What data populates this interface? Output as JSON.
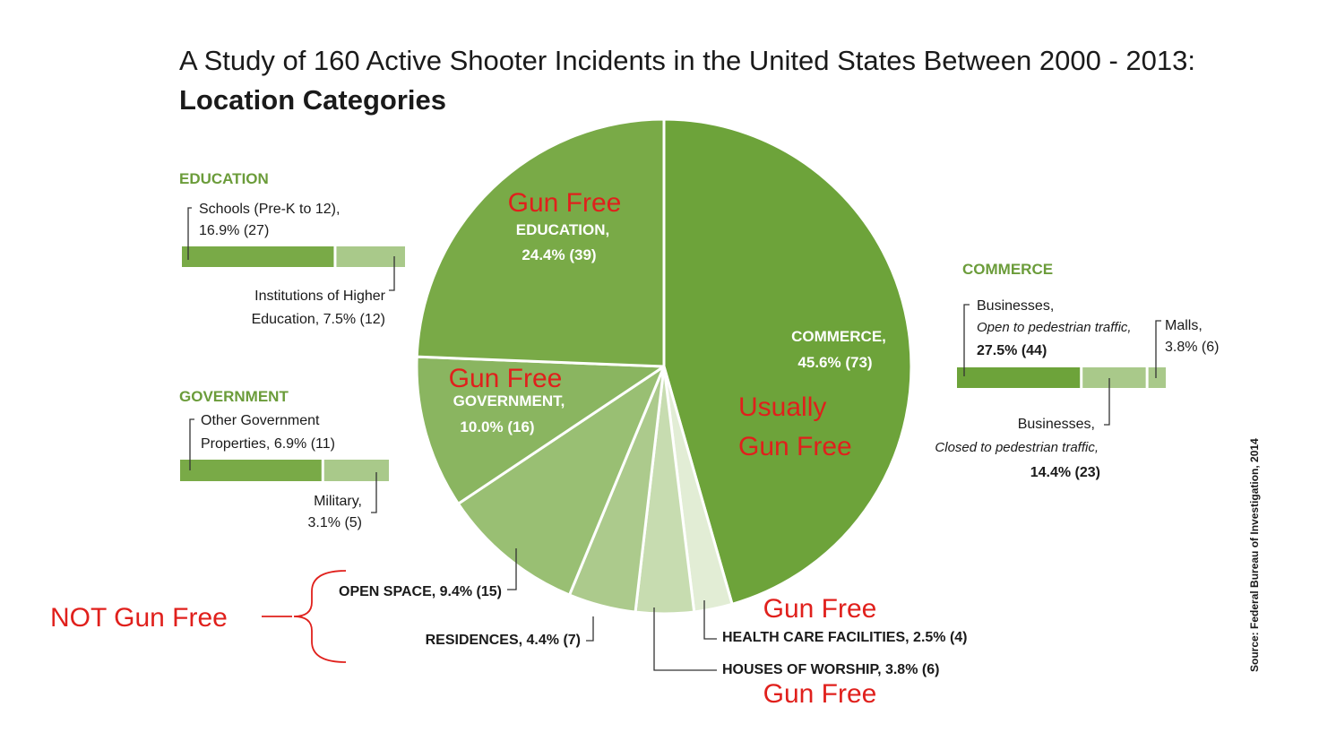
{
  "title": "A Study of 160 Active Shooter Incidents in the United States Between 2000 - 2013:",
  "subtitle": "Location Categories",
  "colors": {
    "commerce": "#6da33a",
    "education": "#79aa47",
    "government": "#8ab560",
    "open_space": "#99bf73",
    "residences": "#acca8c",
    "worship": "#c7dcb0",
    "health": "#e2edd5",
    "bar_light": "#a9c98a",
    "header_green": "#6b9c3a",
    "annotation_red": "#e0201c"
  },
  "chart_data": [
    {
      "type": "pie",
      "title": "Location Categories",
      "slices": [
        {
          "key": "commerce",
          "name": "COMMERCE",
          "percent": 45.6,
          "count": 73,
          "label": "COMMERCE,",
          "value_label": "45.6% (73)"
        },
        {
          "key": "health",
          "name": "HEALTH CARE FACILITIES",
          "percent": 2.5,
          "count": 4,
          "label": "HEALTH CARE FACILITIES, 2.5% (4)"
        },
        {
          "key": "worship",
          "name": "HOUSES OF WORSHIP",
          "percent": 3.8,
          "count": 6,
          "label": "HOUSES OF WORSHIP, 3.8%  (6)"
        },
        {
          "key": "residences",
          "name": "RESIDENCES",
          "percent": 4.4,
          "count": 7,
          "label": "RESIDENCES, 4.4% (7)"
        },
        {
          "key": "open_space",
          "name": "OPEN SPACE",
          "percent": 9.4,
          "count": 15,
          "label": "OPEN SPACE, 9.4% (15)"
        },
        {
          "key": "government",
          "name": "GOVERNMENT",
          "percent": 10.0,
          "count": 16,
          "label": "GOVERNMENT,",
          "value_label": "10.0% (16)"
        },
        {
          "key": "education",
          "name": "EDUCATION",
          "percent": 24.4,
          "count": 39,
          "label": "EDUCATION,",
          "value_label": "24.4% (39)"
        }
      ]
    },
    {
      "type": "bar",
      "title": "EDUCATION",
      "stacked": true,
      "segments": [
        {
          "name": "Schools (Pre-K to 12)",
          "percent": 16.9,
          "count": 27,
          "label_lines": [
            "Schools (Pre-K to 12),",
            "16.9% (27)"
          ]
        },
        {
          "name": "Institutions of Higher Education",
          "percent": 7.5,
          "count": 12,
          "label_lines": [
            "Institutions of Higher",
            "Education, 7.5% (12)"
          ]
        }
      ]
    },
    {
      "type": "bar",
      "title": "GOVERNMENT",
      "stacked": true,
      "segments": [
        {
          "name": "Other Government Properties",
          "percent": 6.9,
          "count": 11,
          "label_lines": [
            "Other Government",
            "Properties, 6.9% (11)"
          ]
        },
        {
          "name": "Military",
          "percent": 3.1,
          "count": 5,
          "label_lines": [
            "Military,",
            "3.1% (5)"
          ]
        }
      ]
    },
    {
      "type": "bar",
      "title": "COMMERCE",
      "stacked": true,
      "segments": [
        {
          "name": "Businesses, Open to pedestrian traffic",
          "percent": 27.5,
          "count": 44,
          "label_lines": [
            "Businesses,",
            "Open to pedestrian traffic,",
            "27.5% (44)"
          ]
        },
        {
          "name": "Businesses, Closed to pedestrian traffic",
          "percent": 14.4,
          "count": 23,
          "label_lines": [
            "Businesses,",
            "Closed to pedestrian traffic,",
            "14.4% (23)"
          ]
        },
        {
          "name": "Malls",
          "percent": 3.8,
          "count": 6,
          "label_lines": [
            "Malls,",
            "3.8% (6)"
          ]
        }
      ]
    }
  ],
  "annotations": {
    "education": "Gun Free",
    "government": "Gun Free",
    "commerce_1": "Usually",
    "commerce_2": "Gun Free",
    "health": "Gun Free",
    "worship": "Gun Free",
    "not_gun_free": "NOT Gun Free"
  },
  "source": "Source: Federal Bureau of Investigation, 2014"
}
